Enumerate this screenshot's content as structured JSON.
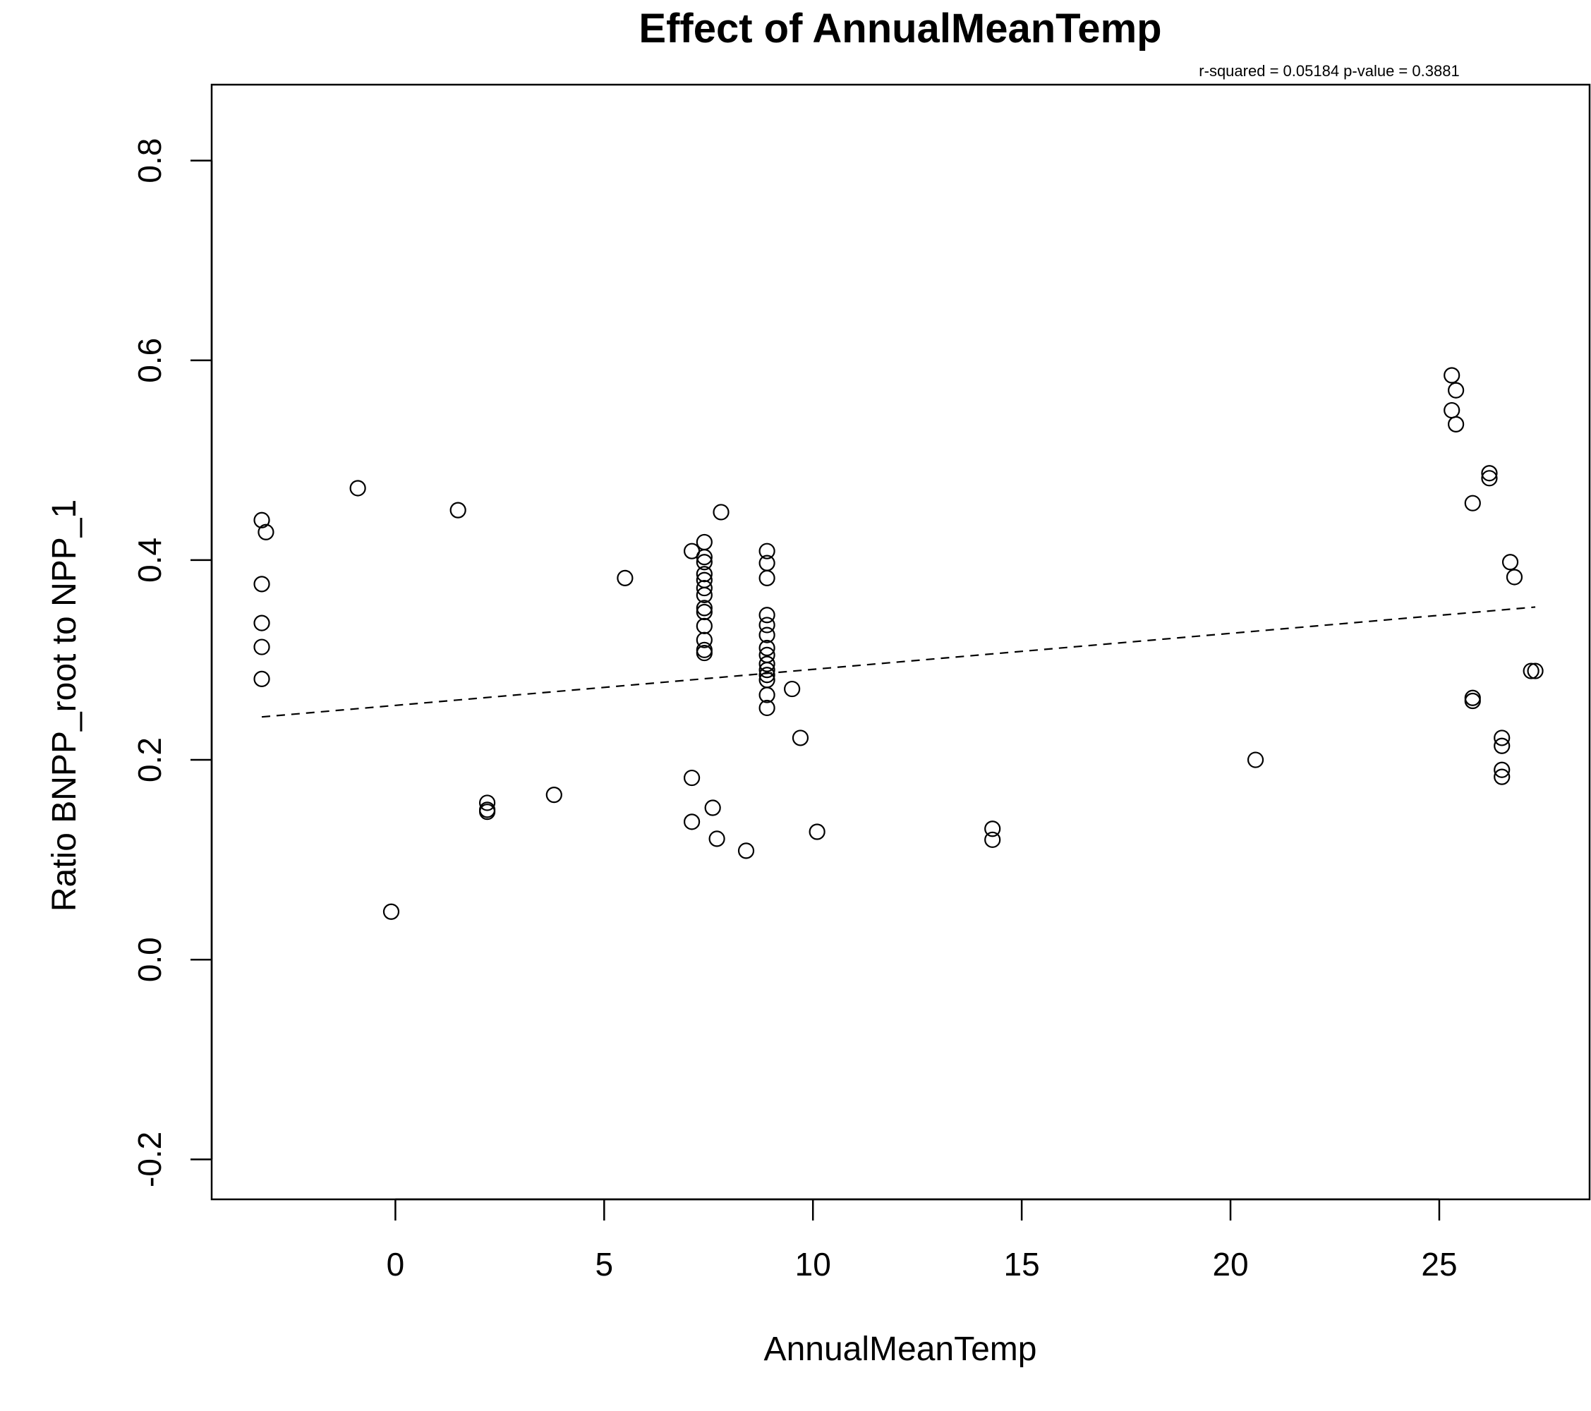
{
  "chart_data": {
    "type": "scatter",
    "title": "Effect of AnnualMeanTemp",
    "subtitle": "r-squared =  0.05184 p-value =  0.3881",
    "xlabel": "AnnualMeanTemp",
    "ylabel": "Ratio BNPP_root to NPP_1",
    "xlim": [
      -4.4,
      28.6
    ],
    "ylim": [
      -0.24,
      0.876
    ],
    "x_ticks": [
      0,
      5,
      10,
      15,
      20,
      25
    ],
    "y_ticks": [
      -0.2,
      0.0,
      0.2,
      0.4,
      0.6,
      0.8
    ],
    "x_tick_labels": [
      "0",
      "5",
      "10",
      "15",
      "20",
      "25"
    ],
    "y_tick_labels": [
      "-0.2",
      "0.0",
      "0.2",
      "0.4",
      "0.6",
      "0.8"
    ],
    "grid": false,
    "marker": "open-circle",
    "points": [
      {
        "x": -3.2,
        "y": 0.44
      },
      {
        "x": -3.1,
        "y": 0.428
      },
      {
        "x": -3.2,
        "y": 0.376
      },
      {
        "x": -3.2,
        "y": 0.337
      },
      {
        "x": -3.2,
        "y": 0.313
      },
      {
        "x": -3.2,
        "y": 0.281
      },
      {
        "x": -0.9,
        "y": 0.472
      },
      {
        "x": -0.1,
        "y": 0.048
      },
      {
        "x": 1.5,
        "y": 0.45
      },
      {
        "x": 2.2,
        "y": 0.157
      },
      {
        "x": 2.2,
        "y": 0.15
      },
      {
        "x": 2.2,
        "y": 0.148
      },
      {
        "x": 3.8,
        "y": 0.165
      },
      {
        "x": 5.5,
        "y": 0.382
      },
      {
        "x": 7.1,
        "y": 0.409
      },
      {
        "x": 7.1,
        "y": 0.182
      },
      {
        "x": 7.1,
        "y": 0.138
      },
      {
        "x": 7.4,
        "y": 0.418
      },
      {
        "x": 7.4,
        "y": 0.403
      },
      {
        "x": 7.4,
        "y": 0.398
      },
      {
        "x": 7.4,
        "y": 0.386
      },
      {
        "x": 7.4,
        "y": 0.38
      },
      {
        "x": 7.4,
        "y": 0.372
      },
      {
        "x": 7.4,
        "y": 0.365
      },
      {
        "x": 7.4,
        "y": 0.352
      },
      {
        "x": 7.4,
        "y": 0.348
      },
      {
        "x": 7.4,
        "y": 0.334
      },
      {
        "x": 7.4,
        "y": 0.32
      },
      {
        "x": 7.4,
        "y": 0.31
      },
      {
        "x": 7.4,
        "y": 0.307
      },
      {
        "x": 7.6,
        "y": 0.152
      },
      {
        "x": 7.7,
        "y": 0.121
      },
      {
        "x": 7.8,
        "y": 0.448
      },
      {
        "x": 8.4,
        "y": 0.109
      },
      {
        "x": 8.9,
        "y": 0.409
      },
      {
        "x": 8.9,
        "y": 0.397
      },
      {
        "x": 8.9,
        "y": 0.382
      },
      {
        "x": 8.9,
        "y": 0.345
      },
      {
        "x": 8.9,
        "y": 0.335
      },
      {
        "x": 8.9,
        "y": 0.325
      },
      {
        "x": 8.9,
        "y": 0.312
      },
      {
        "x": 8.9,
        "y": 0.305
      },
      {
        "x": 8.9,
        "y": 0.296
      },
      {
        "x": 8.9,
        "y": 0.29
      },
      {
        "x": 8.9,
        "y": 0.285
      },
      {
        "x": 8.9,
        "y": 0.28
      },
      {
        "x": 8.9,
        "y": 0.265
      },
      {
        "x": 8.9,
        "y": 0.252
      },
      {
        "x": 9.5,
        "y": 0.271
      },
      {
        "x": 9.7,
        "y": 0.222
      },
      {
        "x": 10.1,
        "y": 0.128
      },
      {
        "x": 14.3,
        "y": 0.131
      },
      {
        "x": 14.3,
        "y": 0.12
      },
      {
        "x": 20.6,
        "y": 0.2
      },
      {
        "x": 25.3,
        "y": 0.585
      },
      {
        "x": 25.4,
        "y": 0.57
      },
      {
        "x": 25.3,
        "y": 0.55
      },
      {
        "x": 25.4,
        "y": 0.536
      },
      {
        "x": 25.8,
        "y": 0.457
      },
      {
        "x": 26.2,
        "y": 0.487
      },
      {
        "x": 26.2,
        "y": 0.482
      },
      {
        "x": 26.7,
        "y": 0.398
      },
      {
        "x": 26.8,
        "y": 0.383
      },
      {
        "x": 25.8,
        "y": 0.262
      },
      {
        "x": 25.8,
        "y": 0.259
      },
      {
        "x": 26.5,
        "y": 0.222
      },
      {
        "x": 26.5,
        "y": 0.214
      },
      {
        "x": 26.5,
        "y": 0.19
      },
      {
        "x": 26.5,
        "y": 0.183
      },
      {
        "x": 27.2,
        "y": 0.289
      },
      {
        "x": 27.3,
        "y": 0.289
      }
    ],
    "fit_line": {
      "style": "dashed",
      "x": [
        -3.2,
        27.3
      ],
      "y": [
        0.243,
        0.353
      ]
    }
  }
}
